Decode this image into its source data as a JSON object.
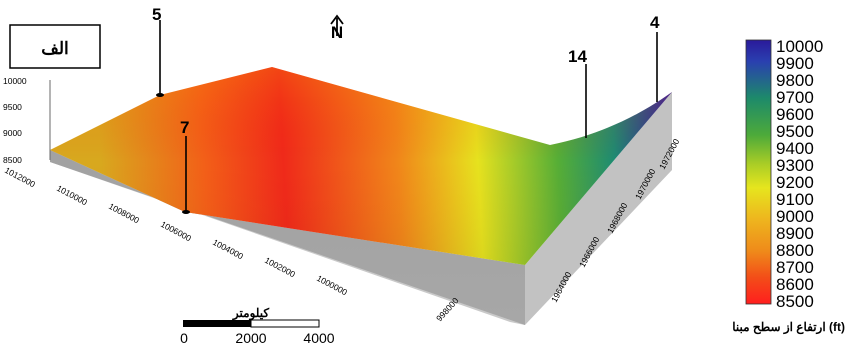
{
  "panel_label": "الف",
  "north_symbol": "N",
  "z_axis": {
    "ticks": [
      "8500",
      "9000",
      "9500",
      "10000"
    ]
  },
  "x_axis": {
    "ticks": [
      "1012000",
      "1010000",
      "1008000",
      "1006000",
      "1004000",
      "1002000",
      "1000000",
      "998000"
    ]
  },
  "y_axis": {
    "ticks": [
      "1964000",
      "1966000",
      "1968000",
      "1970000",
      "1972000"
    ]
  },
  "wells": [
    {
      "id": "5"
    },
    {
      "id": "7"
    },
    {
      "id": "14"
    },
    {
      "id": "4"
    }
  ],
  "scale_bar": {
    "unit": "كيلومتر",
    "labels": [
      "0",
      "2000",
      "4000"
    ]
  },
  "colorbar": {
    "title": "ارتفاع از سطح مبنا (ft)",
    "ticks": [
      "10000",
      "9900",
      "9800",
      "9700",
      "9600",
      "9500",
      "9400",
      "9300",
      "9200",
      "9100",
      "9000",
      "8900",
      "8800",
      "8700",
      "8600",
      "8500"
    ],
    "min": 8500,
    "max": 10000,
    "colors": [
      "#ff1e1e",
      "#f34d18",
      "#ef8a1a",
      "#eeb51e",
      "#e6e51e",
      "#aacd26",
      "#4daa3a",
      "#1d8a6a",
      "#2a3fb0",
      "#2a1a9a"
    ]
  }
}
